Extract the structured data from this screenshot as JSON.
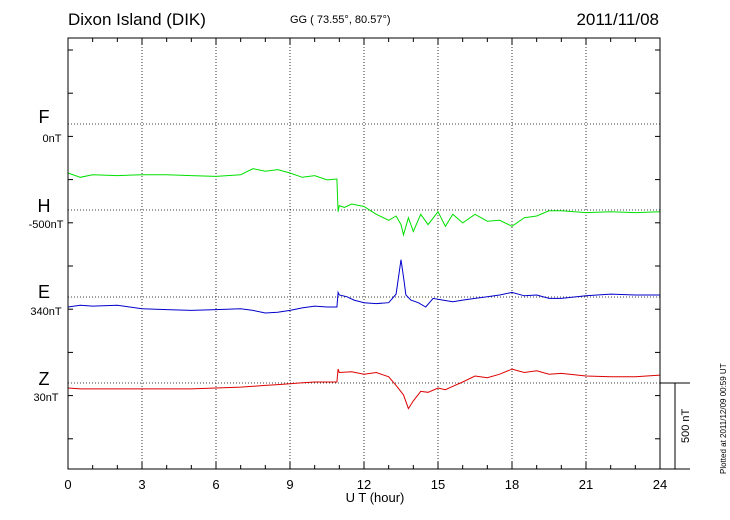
{
  "header": {
    "station": "Dixon Island (DIK)",
    "coords": "GG ( 73.55°,  80.57°)",
    "date": "2011/11/08"
  },
  "channels": [
    {
      "name": "F",
      "offset": "0nT",
      "color": "#ffa500"
    },
    {
      "name": "H",
      "offset": "-500nT",
      "color": "#00e000"
    },
    {
      "name": "E",
      "offset": "340nT",
      "color": "#0000cc"
    },
    {
      "name": "Z",
      "offset": "30nT",
      "color": "#dd0000"
    }
  ],
  "scale_label": "500 nT",
  "plotted_label": "Plotted at 2011/12/09 00:59 UT",
  "chart_data": {
    "type": "line",
    "xlabel": "U T (hour)",
    "xlim": [
      0,
      24
    ],
    "xticks": [
      "0",
      "3",
      "6",
      "9",
      "12",
      "15",
      "18",
      "21",
      "24"
    ],
    "grid": true,
    "series": [
      {
        "name": "H",
        "color": "#00e000",
        "x": [
          0,
          0.5,
          1,
          2,
          3,
          4,
          5,
          6,
          7,
          7.5,
          8,
          8.5,
          9,
          9.5,
          10,
          10.5,
          10.9,
          10.95,
          11.0,
          11.2,
          11.5,
          12,
          12.5,
          13,
          13.3,
          13.5,
          13.6,
          13.8,
          14,
          14.3,
          14.6,
          15,
          15.3,
          15.6,
          16,
          16.5,
          17,
          17.5,
          18,
          18.5,
          19,
          19.5,
          20,
          21,
          22,
          23,
          24
        ],
        "y": [
          0,
          -5,
          -2,
          -3,
          -2,
          -2,
          -3,
          -4,
          -2,
          5,
          2,
          4,
          0,
          -5,
          -3,
          -8,
          -7,
          -45,
          -38,
          -40,
          -36,
          -39,
          -48,
          -55,
          -50,
          -60,
          -72,
          -52,
          -68,
          -48,
          -60,
          -45,
          -62,
          -48,
          -58,
          -48,
          -56,
          -55,
          -62,
          -52,
          -50,
          -44,
          -44,
          -46,
          -45,
          -46,
          -45
        ]
      },
      {
        "name": "E",
        "color": "#0000cc",
        "x": [
          0,
          0.5,
          1,
          2,
          3,
          4,
          5,
          6,
          7,
          7.5,
          8,
          8.5,
          9,
          9.5,
          10,
          10.5,
          10.9,
          10.95,
          11.0,
          11.3,
          11.6,
          12,
          12.5,
          13,
          13.3,
          13.5,
          13.6,
          13.7,
          13.9,
          14.2,
          14.5,
          14.8,
          15.2,
          15.6,
          16,
          16.5,
          17,
          17.5,
          18,
          18.5,
          19,
          19.5,
          20,
          21,
          22,
          23,
          24
        ],
        "y": [
          0,
          2,
          1,
          2,
          -2,
          -3,
          -4,
          -3,
          -2,
          -4,
          -7,
          -6,
          -4,
          -1,
          1,
          0,
          0,
          17,
          14,
          12,
          8,
          5,
          4,
          5,
          15,
          55,
          35,
          14,
          8,
          5,
          0,
          10,
          8,
          6,
          8,
          10,
          12,
          14,
          17,
          13,
          14,
          10,
          10,
          13,
          15,
          14,
          14
        ]
      },
      {
        "name": "Z",
        "color": "#dd0000",
        "x": [
          0,
          0.5,
          1,
          2,
          3,
          4,
          5,
          6,
          7,
          7.5,
          8,
          8.5,
          9,
          9.5,
          10,
          10.5,
          10.9,
          10.95,
          11.0,
          11.5,
          12,
          12.5,
          13,
          13.3,
          13.6,
          13.8,
          14,
          14.3,
          14.6,
          15,
          15.3,
          15.6,
          16,
          16.5,
          17,
          17.5,
          18,
          18.5,
          19,
          19.5,
          20,
          21,
          22,
          23,
          24
        ],
        "y": [
          0,
          -1,
          -1,
          -1,
          -1,
          -1,
          -1,
          0,
          1,
          2,
          3,
          4,
          5,
          6,
          7,
          7,
          7,
          22,
          18,
          19,
          16,
          18,
          13,
          3,
          -8,
          -24,
          -15,
          -4,
          -5,
          0,
          -2,
          2,
          7,
          14,
          12,
          16,
          22,
          18,
          20,
          16,
          17,
          14,
          13,
          13,
          15
        ]
      }
    ]
  }
}
